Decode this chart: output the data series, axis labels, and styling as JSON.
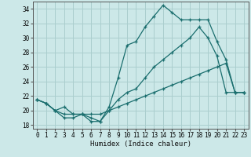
{
  "xlabel": "Humidex (Indice chaleur)",
  "background_color": "#cce8e8",
  "grid_color": "#aacece",
  "line_color": "#1a6e6e",
  "xlim": [
    -0.5,
    23.5
  ],
  "ylim": [
    17.5,
    35.0
  ],
  "yticks": [
    18,
    20,
    22,
    24,
    26,
    28,
    30,
    32,
    34
  ],
  "xticks": [
    0,
    1,
    2,
    3,
    4,
    5,
    6,
    7,
    8,
    9,
    10,
    11,
    12,
    13,
    14,
    15,
    16,
    17,
    18,
    19,
    20,
    21,
    22,
    23
  ],
  "line1_x": [
    0,
    1,
    2,
    3,
    4,
    5,
    6,
    7,
    8,
    9,
    10,
    11,
    12,
    13,
    14,
    15,
    16,
    17,
    18,
    19,
    20,
    21,
    22,
    23
  ],
  "line1_y": [
    21.5,
    21.0,
    20.0,
    19.0,
    19.0,
    19.5,
    18.5,
    18.5,
    20.5,
    24.5,
    29.0,
    29.5,
    31.5,
    33.0,
    34.5,
    33.5,
    32.5,
    32.5,
    32.5,
    32.5,
    29.5,
    27.0,
    22.5,
    22.5
  ],
  "line2_x": [
    0,
    1,
    2,
    3,
    4,
    5,
    6,
    7,
    8,
    9,
    10,
    11,
    12,
    13,
    14,
    15,
    16,
    17,
    18,
    19,
    20,
    21,
    22,
    23
  ],
  "line2_y": [
    21.5,
    21.0,
    20.0,
    20.5,
    19.5,
    19.5,
    19.0,
    18.5,
    20.0,
    21.5,
    22.5,
    23.0,
    24.5,
    26.0,
    27.0,
    28.0,
    29.0,
    30.0,
    31.5,
    30.0,
    27.5,
    22.5,
    22.5,
    22.5
  ],
  "line3_x": [
    0,
    1,
    2,
    3,
    4,
    5,
    6,
    7,
    8,
    9,
    10,
    11,
    12,
    13,
    14,
    15,
    16,
    17,
    18,
    19,
    20,
    21,
    22,
    23
  ],
  "line3_y": [
    21.5,
    21.0,
    20.0,
    19.5,
    19.5,
    19.5,
    19.5,
    19.5,
    20.0,
    20.5,
    21.0,
    21.5,
    22.0,
    22.5,
    23.0,
    23.5,
    24.0,
    24.5,
    25.0,
    25.5,
    26.0,
    26.5,
    22.5,
    22.5
  ]
}
